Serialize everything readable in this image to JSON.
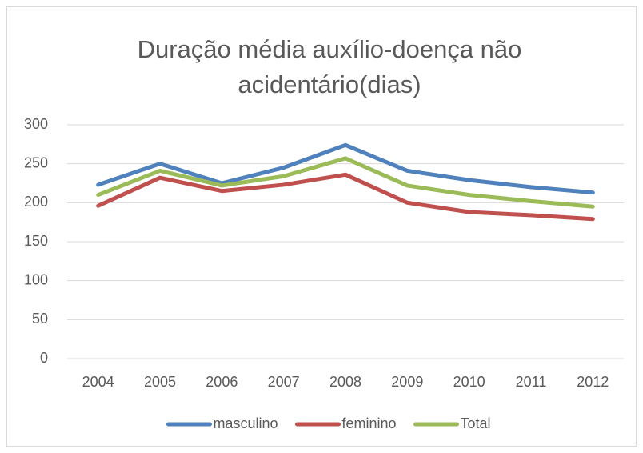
{
  "chart_data": {
    "type": "line",
    "title": "Duração média auxílio-doença não acidentário(dias)",
    "categories": [
      "2004",
      "2005",
      "2006",
      "2007",
      "2008",
      "2009",
      "2010",
      "2011",
      "2012"
    ],
    "series": [
      {
        "name": "masculino",
        "color": "#4f81bd",
        "values": [
          223,
          250,
          225,
          245,
          274,
          241,
          229,
          220,
          213
        ]
      },
      {
        "name": "feminino",
        "color": "#c0504d",
        "values": [
          196,
          232,
          215,
          223,
          236,
          200,
          188,
          184,
          179
        ]
      },
      {
        "name": "Total",
        "color": "#9bbb59",
        "values": [
          210,
          241,
          222,
          234,
          257,
          222,
          210,
          202,
          195
        ]
      }
    ],
    "ylim": [
      0,
      300
    ],
    "yticks": [
      0,
      50,
      100,
      150,
      200,
      250,
      300
    ],
    "grid": true,
    "legend": "bottom"
  }
}
